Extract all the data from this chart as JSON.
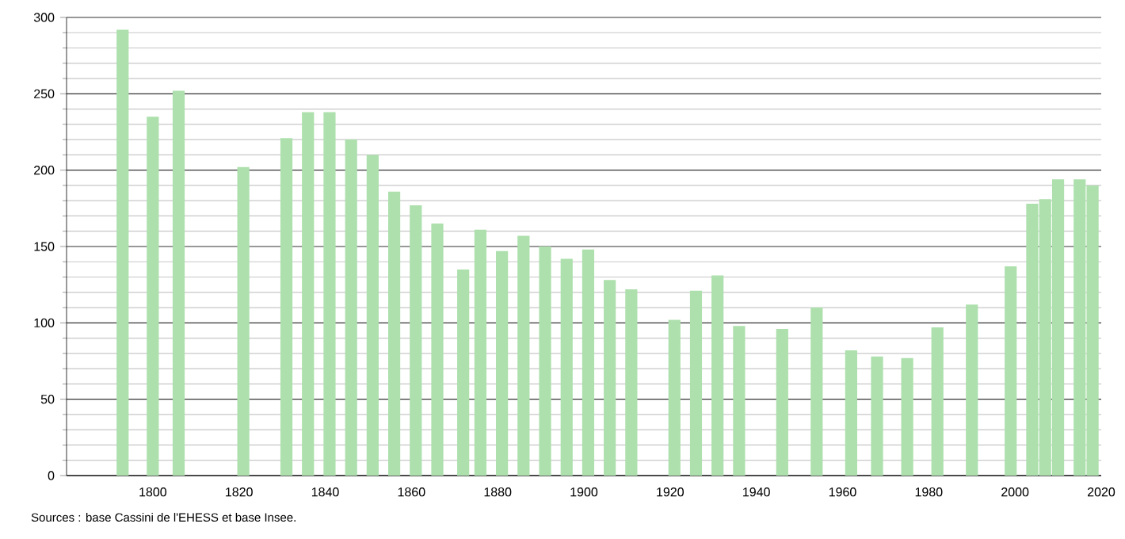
{
  "chart_data": {
    "type": "bar",
    "x": [
      1793,
      1800,
      1806,
      1821,
      1831,
      1836,
      1841,
      1846,
      1851,
      1856,
      1861,
      1866,
      1872,
      1876,
      1881,
      1886,
      1891,
      1896,
      1901,
      1906,
      1911,
      1921,
      1926,
      1931,
      1936,
      1946,
      1954,
      1962,
      1968,
      1975,
      1982,
      1990,
      1999,
      2004,
      2007,
      2010,
      2015,
      2018
    ],
    "values": [
      292,
      235,
      252,
      202,
      221,
      238,
      238,
      220,
      210,
      186,
      177,
      165,
      135,
      161,
      147,
      157,
      150,
      142,
      148,
      128,
      122,
      102,
      121,
      131,
      98,
      96,
      110,
      82,
      78,
      77,
      97,
      112,
      137,
      178,
      181,
      194,
      194,
      190
    ],
    "color": "#ade0ad",
    "xlim": [
      1780,
      2020
    ],
    "xticks": [
      1800,
      1820,
      1840,
      1860,
      1880,
      1900,
      1920,
      1940,
      1960,
      1980,
      2000,
      2020
    ],
    "ylim": [
      0,
      300
    ],
    "yticks": [
      0,
      50,
      100,
      150,
      200,
      250,
      300
    ],
    "grid": "y",
    "annotations": [
      "Sources : base Cassini de l'EHESS et base Insee."
    ]
  }
}
